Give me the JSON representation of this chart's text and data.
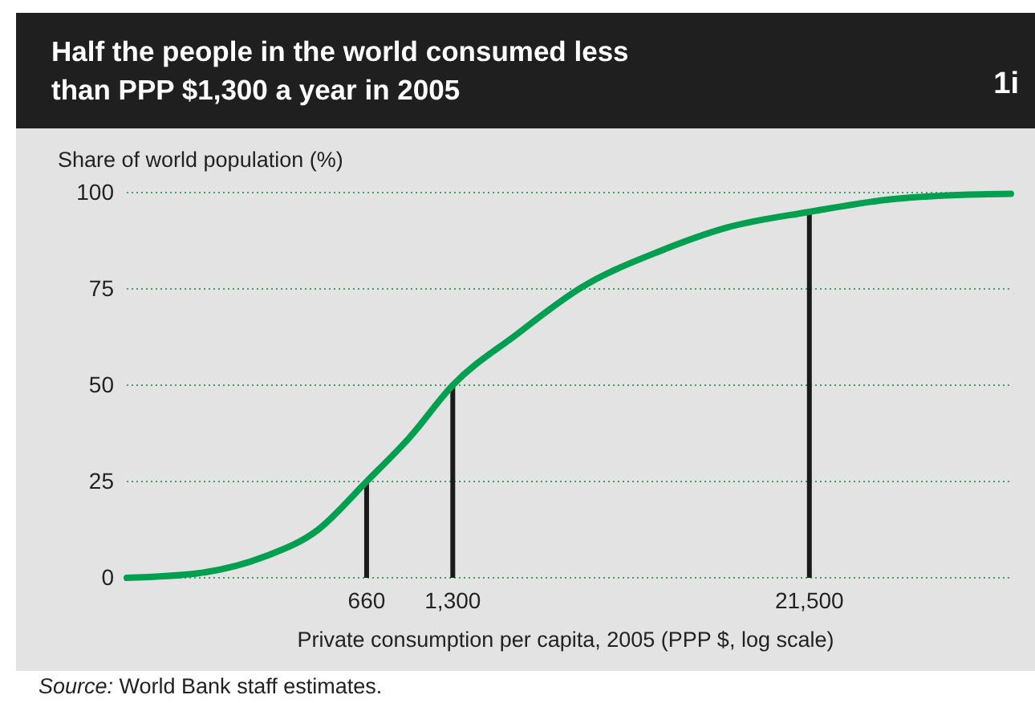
{
  "chart_data": {
    "type": "line",
    "title": "Half the people in the world consumed less than PPP $1,300 a year in 2005",
    "ylabel": "Share of world population (%)",
    "xlabel": "Private consumption per capita, 2005 (PPP $, log scale)",
    "annotations": [
      "1i",
      "Source: World Bank staff estimates."
    ],
    "log": "x",
    "xlim": [
      100,
      105000
    ],
    "xticks": [
      {
        "value": 660,
        "label": "660"
      },
      {
        "value": 1300,
        "label": "1,300"
      },
      {
        "value": 21500,
        "label": "21,500"
      }
    ],
    "ylim": [
      0,
      100
    ],
    "yticks": [
      0,
      25,
      50,
      75,
      100
    ],
    "grid": "y",
    "series": [
      {
        "color": "#00a050",
        "x": [
          100,
          176,
          296,
          449,
          660,
          927,
          1300,
          2133,
          3580,
          6680,
          11220,
          21500,
          41100,
          69200,
          105000
        ],
        "values": [
          0,
          1.2,
          5.5,
          12.4,
          25,
          36.5,
          50,
          63,
          75.4,
          84.9,
          90.9,
          95,
          98.3,
          99.4,
          99.7
        ]
      },
      {
        "type": "bar",
        "color": "#1a1a1a",
        "x": [
          660,
          1300,
          21500
        ],
        "values": [
          25,
          50,
          95
        ]
      }
    ]
  }
}
